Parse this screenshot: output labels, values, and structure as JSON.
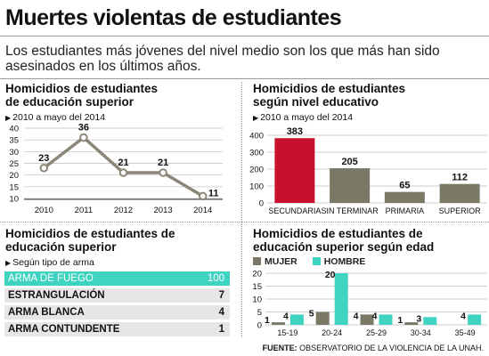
{
  "header": {
    "title": "Muertes violentas de estudiantes",
    "subtitle": "Los estudiantes más jóvenes del nivel  medio son los que más han sido asesinados en los últimos años."
  },
  "panels": {
    "superior": {
      "title": "Homicidios de estudiantes de educación superior",
      "note": "2010 a mayo del 2014"
    },
    "nivel": {
      "title": "Homicidios de estudiantes según nivel educativo",
      "note": "2010 a mayo del 2014"
    },
    "arma": {
      "title": "Homicidios de estudiantes de educación superior",
      "note": "Según tipo de arma"
    },
    "edad": {
      "title": "Homicidios de estudiantes de educación superior según edad",
      "legend_mujer": "MUJER",
      "legend_hombre": "HOMBRE"
    }
  },
  "colors": {
    "line": "#8b8677",
    "red": "#c8102e",
    "gray": "#7c7866",
    "teal": "#3fd3c1",
    "grid": "#bdbdbd"
  },
  "source": {
    "label": "FUENTE:",
    "text": "OBSERVATORIO DE LA VIOLENCIA DE LA UNAH."
  },
  "chart_data": [
    {
      "type": "line",
      "x": [
        "2010",
        "2011",
        "2012",
        "2013",
        "2014"
      ],
      "values": [
        23,
        36,
        21,
        21,
        11
      ],
      "ylim": [
        10,
        40
      ],
      "yticks": [
        10,
        15,
        20,
        25,
        30,
        35,
        40
      ],
      "grid": true
    },
    {
      "type": "bar",
      "categories": [
        "SECUNDARIA",
        "SIN TERMINAR",
        "PRIMARIA",
        "SUPERIOR"
      ],
      "values": [
        383,
        205,
        65,
        112
      ],
      "ylim": [
        0,
        400
      ],
      "yticks": [
        0,
        100,
        200,
        300,
        400
      ],
      "highlight": "SECUNDARIA",
      "grid": true
    },
    {
      "type": "table",
      "rows": [
        {
          "label": "ARMA DE FUEGO",
          "value": 100
        },
        {
          "label": "ESTRANGULACIÓN",
          "value": 7
        },
        {
          "label": "ARMA BLANCA",
          "value": 4
        },
        {
          "label": "ARMA CONTUNDENTE",
          "value": 1
        }
      ]
    },
    {
      "type": "bar",
      "categories": [
        "15-19",
        "20-24",
        "25-29",
        "30-34",
        "35-49"
      ],
      "series": [
        {
          "name": "MUJER",
          "values": [
            1,
            5,
            4,
            1,
            0
          ]
        },
        {
          "name": "HOMBRE",
          "values": [
            4,
            20,
            4,
            3,
            4
          ]
        }
      ],
      "ylim": [
        0,
        20
      ],
      "yticks": [
        0,
        5,
        10,
        15,
        20
      ],
      "legend": "top-left",
      "grid": true
    }
  ]
}
